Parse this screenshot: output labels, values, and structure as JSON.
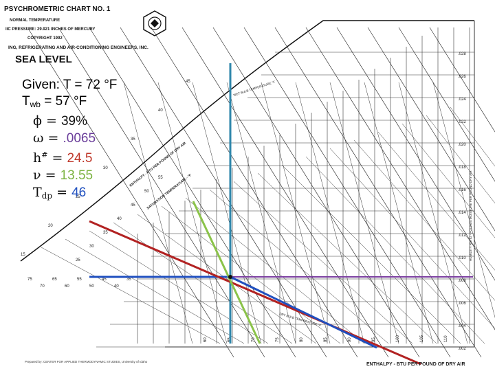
{
  "header": {
    "title": "PSYCHROMETRIC CHART NO. 1",
    "line1": "NORMAL TEMPERATURE",
    "line2": "IIC PRESSURE: 29.921 INCHES OF MERCURY",
    "line3": "COPYRIGHT 1992",
    "line4": "ING, REFRIGERATING AND AIR-CONDITIONING ENGINEERS, INC.",
    "sea_level": "SEA LEVEL"
  },
  "given": {
    "label": "Given",
    "temp": "T = 72 °F",
    "twb_sym": "T",
    "twb_sub": "wb",
    "twb_val": "= 57 °F",
    "phi_sym": "ϕ",
    "phi_val": "39%",
    "omega_sym": "ω",
    "omega_val": ".0065",
    "h_sym": "h",
    "h_sup": "#",
    "h_val": "24.5",
    "nu_sym": "ν",
    "nu_val": "13.55",
    "tdp_sym": "T",
    "tdp_sub": "dp",
    "tdp_val": "46",
    "colors": {
      "phi": "#111111",
      "omega": "#6a3d9a",
      "h": "#c0392b",
      "nu": "#7cb342",
      "tdp": "#1f4fbf"
    }
  },
  "chart_labels": {
    "enthalpy_diag": "ENTHALPY - BTU PER POUND OF DRY AIR",
    "saturation": "SATURATION TEMPERATURE - °F",
    "wet_bulb": "WET BULB TEMPERATURE °F",
    "humidity_ratio": "HUMIDITY RATIO - POUNDS MOISTURE PER POUND DRY AIR",
    "dry_bulb": "DRY BULB TEMPERATURE °F",
    "footer_right": "ENTHALPY - BTU PER POUND OF DRY AIR",
    "footer_left": "Prepared by: CENTER FOR APPLIED THERMODYNAMIC STUDIES, University of Idaho",
    "humidity_ticks": [
      ".028",
      ".026",
      ".024",
      ".022",
      ".020",
      ".018",
      ".016",
      ".014",
      ".012",
      ".010",
      ".008",
      ".006",
      ".004",
      ".002"
    ],
    "bottom_ticks": [
      "60",
      "65",
      "70",
      "75",
      "80",
      "85",
      "90",
      "95",
      "100",
      "105",
      "110"
    ],
    "left_ticks": [
      "75",
      "70",
      "65",
      "60",
      "55",
      "50",
      "45",
      "40",
      "35"
    ],
    "sat_ticks": [
      "55",
      "50",
      "45",
      "40",
      "35",
      "30",
      "25"
    ],
    "enthalpy_ticks": [
      "45",
      "40",
      "35",
      "30",
      "25",
      "20",
      "15"
    ],
    "line_colors": {
      "dry_bulb_vertical": "#2e86ab",
      "dew_point_horizontal": "#1f4fbf",
      "humidity_horizontal": "#7b3fa0",
      "enthalpy_diag": "#b22222",
      "wet_bulb_diag": "#1f4fbf",
      "volume_line": "#8bc34a",
      "grid": "#333333"
    }
  }
}
